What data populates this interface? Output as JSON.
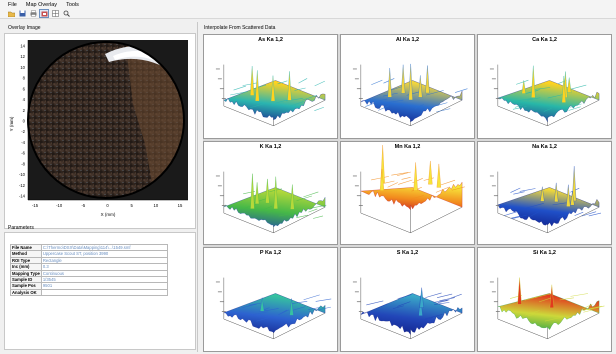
{
  "menu": {
    "file": "File",
    "map_overlay": "Map Overlay",
    "tools": "Tools"
  },
  "toolbar": {
    "icons": [
      "folder-open-icon",
      "save-icon",
      "print-icon",
      "overlay-map-icon",
      "grid-icon",
      "zoom-icon"
    ]
  },
  "overlay": {
    "title": "Overlay Image",
    "ylabel": "Y (mm)",
    "xlabel": "X (mm)",
    "yticks": [
      "14",
      "12",
      "10",
      "8",
      "6",
      "4",
      "2",
      "0",
      "-2",
      "-4",
      "-6",
      "-8",
      "-10",
      "-12",
      "-14"
    ],
    "xticks": [
      "-15",
      "-10",
      "-5",
      "0",
      "5",
      "10",
      "15"
    ]
  },
  "parameters": {
    "title": "Parameters",
    "rows": [
      {
        "key": "File Name",
        "value": "C:\\Thermo\\DSX\\Data\\Mapping\\114\\...\\1549.smf"
      },
      {
        "key": "Method",
        "value": "Uppercase Scout ST, position 3990"
      },
      {
        "key": "ROI Type",
        "value": "Rectangle"
      },
      {
        "key": "Inc (mm)",
        "value": "0.3"
      },
      {
        "key": "Mapping Type",
        "value": "Continuous"
      },
      {
        "key": "Sample ID",
        "value": "1/3545"
      },
      {
        "key": "Sample Pos",
        "value": "9501"
      },
      {
        "key": "Analysis OK",
        "value": ""
      }
    ]
  },
  "interp": {
    "title": "Interpolate From Scattered Data",
    "plots": [
      {
        "label": "As Ka 1,2",
        "colors": [
          "#1a2a8c",
          "#2bb5b0",
          "#ffd21f"
        ]
      },
      {
        "label": "Al Ka 1,2",
        "colors": [
          "#10208a",
          "#2a6fd0",
          "#f2d53c"
        ]
      },
      {
        "label": "Ca Ka 1,2",
        "colors": [
          "#1b2f90",
          "#28b7a8",
          "#ffd21f"
        ]
      },
      {
        "label": "K Ka 1,2",
        "colors": [
          "#1f4ba8",
          "#46b848",
          "#b6d93a"
        ]
      },
      {
        "label": "Mn Ka 1,2",
        "colors": [
          "#c81e1e",
          "#f28c1e",
          "#f7e43a"
        ]
      },
      {
        "label": "Na Ka 1,2",
        "colors": [
          "#0f1c86",
          "#2050c8",
          "#f0d83a"
        ]
      },
      {
        "label": "P Ka 1,2",
        "colors": [
          "#14238c",
          "#2d62d0",
          "#36c2a0"
        ]
      },
      {
        "label": "S Ka 1,2",
        "colors": [
          "#0e1b84",
          "#2246b8",
          "#3aa8c8"
        ]
      },
      {
        "label": "Si Ka 1,2",
        "colors": [
          "#28a048",
          "#cdd83a",
          "#e23a1e"
        ]
      }
    ]
  }
}
